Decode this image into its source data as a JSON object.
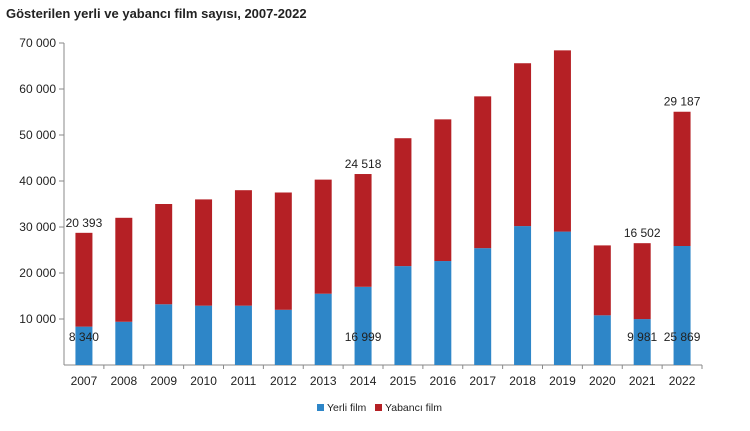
{
  "colors": {
    "yerli": "#2E86C8",
    "yabanci": "#B52025",
    "axis": "#888888",
    "text": "#222222"
  },
  "chart_data": {
    "type": "bar",
    "stacked": true,
    "title": "Gösterilen yerli ve yabancı film sayısı, 2007-2022",
    "xlabel": "",
    "ylabel": "",
    "ylim": [
      0,
      70000
    ],
    "yticks": [
      10000,
      20000,
      30000,
      40000,
      50000,
      60000,
      70000
    ],
    "ytick_labels": [
      "10 000",
      "20 000",
      "30 000",
      "40 000",
      "50 000",
      "60 000",
      "70 000"
    ],
    "grid": false,
    "legend_position": "bottom",
    "categories": [
      "2007",
      "2008",
      "2009",
      "2010",
      "2011",
      "2012",
      "2013",
      "2014",
      "2015",
      "2016",
      "2017",
      "2018",
      "2019",
      "2020",
      "2021",
      "2022"
    ],
    "series": [
      {
        "name": "Yerli film",
        "values": [
          8340,
          9400,
          13200,
          12900,
          12900,
          12000,
          15500,
          16999,
          21500,
          22600,
          25400,
          30200,
          29000,
          10800,
          9981,
          25869
        ]
      },
      {
        "name": "Yabancı film",
        "values": [
          20393,
          22600,
          21800,
          23100,
          25100,
          25500,
          24800,
          24518,
          27800,
          30800,
          33000,
          35400,
          39400,
          15200,
          16502,
          29187
        ]
      }
    ],
    "data_labels": [
      {
        "category": "2007",
        "series": "Yerli film",
        "text": "8 340"
      },
      {
        "category": "2007",
        "series": "Yabancı film",
        "text": "20 393"
      },
      {
        "category": "2014",
        "series": "Yerli film",
        "text": "16 999"
      },
      {
        "category": "2014",
        "series": "Yabancı film",
        "text": "24 518"
      },
      {
        "category": "2021",
        "series": "Yerli film",
        "text": "9 981"
      },
      {
        "category": "2021",
        "series": "Yabancı film",
        "text": "16 502"
      },
      {
        "category": "2022",
        "series": "Yerli film",
        "text": "25 869"
      },
      {
        "category": "2022",
        "series": "Yabancı film",
        "text": "29 187"
      }
    ]
  }
}
